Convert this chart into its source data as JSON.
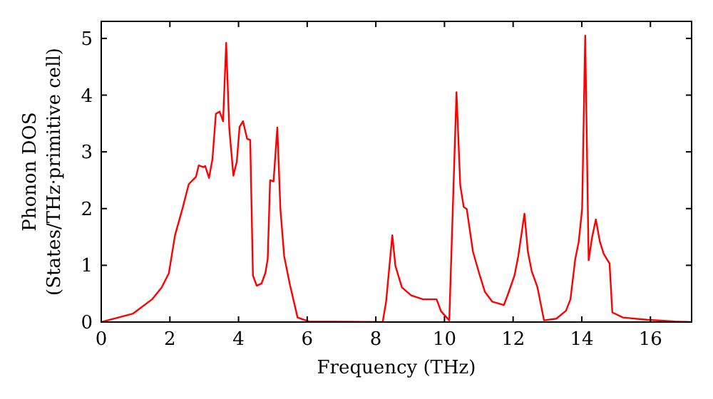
{
  "chart_data": {
    "type": "line",
    "xlabel": "Frequency (THz)",
    "ylabel": "Phonon DOS\n(States/THz·primitive cell)",
    "xlim": [
      0,
      17.2
    ],
    "xticks": [
      0,
      2,
      4,
      6,
      8,
      10,
      12,
      14,
      16
    ],
    "ylim": [
      0,
      5.3
    ],
    "yticks": [
      0,
      1,
      2,
      3,
      4,
      5
    ],
    "grid": false,
    "series": [
      {
        "color": "#ff0000",
        "x": [
          0,
          0.93,
          1.48,
          1.76,
          1.97,
          2.15,
          2.38,
          2.55,
          2.76,
          2.84,
          2.98,
          3.03,
          3.14,
          3.24,
          3.34,
          3.45,
          3.55,
          3.64,
          3.73,
          3.85,
          3.95,
          4.03,
          4.13,
          4.25,
          4.34,
          4.42,
          4.53,
          4.67,
          4.78,
          4.85,
          4.92,
          5.02,
          5.13,
          5.22,
          5.33,
          5.5,
          5.72,
          6.05,
          8.2,
          8.3,
          8.48,
          8.57,
          8.76,
          9.03,
          9.38,
          9.77,
          9.9,
          10.14,
          10.35,
          10.46,
          10.56,
          10.65,
          10.83,
          11.01,
          11.18,
          11.39,
          11.73,
          11.85,
          12.04,
          12.15,
          12.33,
          12.43,
          12.54,
          12.71,
          12.9,
          13.26,
          13.54,
          13.67,
          13.81,
          13.91,
          14.01,
          14.1,
          14.2,
          14.3,
          14.41,
          14.53,
          14.64,
          14.81,
          14.89,
          15.2,
          15.89,
          16.72,
          17.2
        ],
        "values": [
          0,
          0.15,
          0.4,
          0.61,
          0.86,
          1.53,
          2.03,
          2.43,
          2.56,
          2.76,
          2.73,
          2.75,
          2.54,
          2.87,
          3.67,
          3.71,
          3.54,
          4.92,
          3.42,
          2.58,
          2.83,
          3.44,
          3.54,
          3.23,
          3.21,
          0.82,
          0.64,
          0.68,
          0.86,
          1.11,
          2.5,
          2.48,
          3.43,
          1.99,
          1.16,
          0.65,
          0.08,
          0.01,
          0,
          0.36,
          1.53,
          0.99,
          0.61,
          0.47,
          0.4,
          0.4,
          0.19,
          0.03,
          4.05,
          2.41,
          2.03,
          1.99,
          1.24,
          0.86,
          0.53,
          0.36,
          0.3,
          0.49,
          0.82,
          1.16,
          1.91,
          1.24,
          0.9,
          0.61,
          0.03,
          0.06,
          0.2,
          0.4,
          1.11,
          1.41,
          1.99,
          5.05,
          1.09,
          1.49,
          1.81,
          1.41,
          1.2,
          1.03,
          0.17,
          0.08,
          0.04,
          0.01,
          0
        ]
      }
    ]
  }
}
